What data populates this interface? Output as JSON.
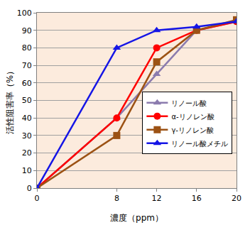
{
  "chart_data": {
    "type": "line",
    "x_label": "濃度（ppm）",
    "y_label": "活性阻害率（%）",
    "x": [
      0,
      8,
      12,
      16,
      20
    ],
    "series": [
      {
        "name": "リノール酸",
        "color": "#8B7BAE",
        "marker": "triangle-up",
        "values": [
          0,
          40,
          65,
          90,
          95
        ]
      },
      {
        "name": "α-リノレン酸",
        "color": "#FF0000",
        "marker": "circle",
        "values": [
          0,
          40,
          80,
          90,
          95
        ]
      },
      {
        "name": "γ-リノレン酸",
        "color": "#9C5214",
        "marker": "square",
        "values": [
          0,
          30,
          72,
          90,
          96
        ]
      },
      {
        "name": "リノール酸メチル",
        "color": "#1515E6",
        "marker": "triangle-up",
        "values": [
          0,
          80,
          90,
          92,
          95
        ]
      }
    ],
    "xlim": [
      0,
      20
    ],
    "xticks": [
      0,
      8,
      12,
      16,
      20
    ],
    "ylim": [
      0,
      100
    ],
    "yticks": [
      0,
      10,
      20,
      30,
      40,
      50,
      60,
      70,
      80,
      90,
      100
    ],
    "grid": true,
    "legend": "right"
  }
}
